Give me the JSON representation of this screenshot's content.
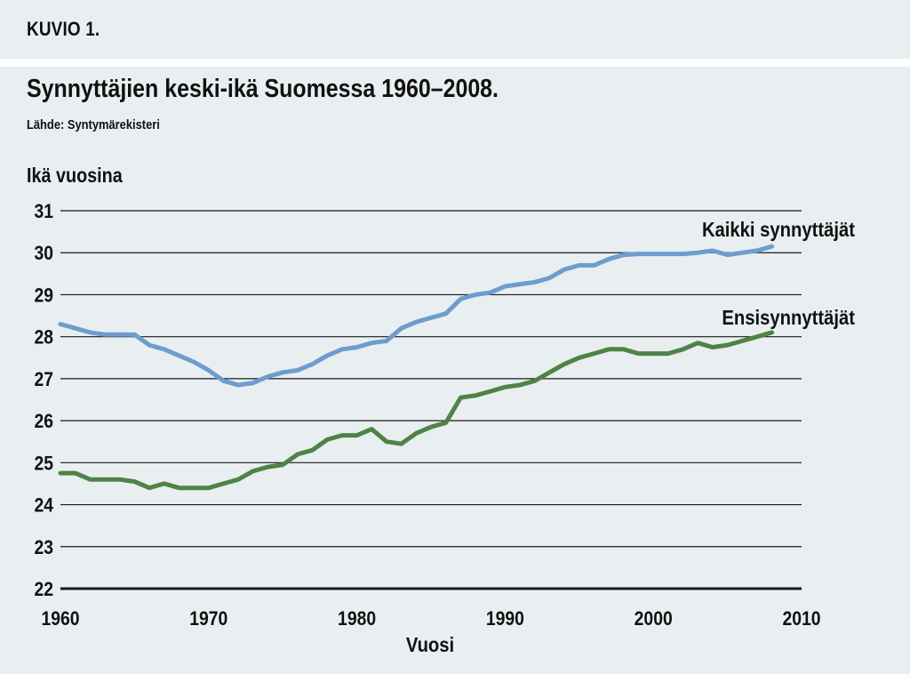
{
  "header": {
    "figure_label": "KUVIO 1.",
    "title": "Synnyttäjien keski-ikä Suomessa 1960–2008.",
    "source": "Lähde: Syntymärekisteri"
  },
  "colors": {
    "background": "#e9eef1",
    "all_mothers": "#6f9ccf",
    "first_time_mothers": "#4f8346",
    "grid": "#1a1a1a"
  },
  "chart_data": {
    "type": "line",
    "title": "Synnyttäjien keski-ikä Suomessa 1960–2008.",
    "xlabel": "Vuosi",
    "ylabel": "Ikä vuosina",
    "xlim": [
      1960,
      2010
    ],
    "ylim": [
      22,
      31
    ],
    "xticks": [
      1960,
      1970,
      1980,
      1990,
      2000,
      2010
    ],
    "yticks": [
      22,
      23,
      24,
      25,
      26,
      27,
      28,
      29,
      30,
      31
    ],
    "grid": true,
    "legend": "inline labels at right end of lines",
    "series": [
      {
        "name": "Kaikki synnyttäjät",
        "color": "#6f9ccf",
        "x": [
          1960,
          1961,
          1962,
          1963,
          1964,
          1965,
          1966,
          1967,
          1968,
          1969,
          1970,
          1971,
          1972,
          1973,
          1974,
          1975,
          1976,
          1977,
          1978,
          1979,
          1980,
          1981,
          1982,
          1983,
          1984,
          1985,
          1986,
          1987,
          1988,
          1989,
          1990,
          1991,
          1992,
          1993,
          1994,
          1995,
          1996,
          1997,
          1998,
          1999,
          2000,
          2001,
          2002,
          2003,
          2004,
          2005,
          2006,
          2007,
          2008
        ],
        "values": [
          28.3,
          28.2,
          28.1,
          28.05,
          28.05,
          28.05,
          27.8,
          27.7,
          27.55,
          27.4,
          27.2,
          26.95,
          26.85,
          26.9,
          27.05,
          27.15,
          27.2,
          27.35,
          27.55,
          27.7,
          27.75,
          27.85,
          27.9,
          28.2,
          28.35,
          28.45,
          28.55,
          28.9,
          29.0,
          29.05,
          29.2,
          29.25,
          29.3,
          29.4,
          29.6,
          29.7,
          29.7,
          29.85,
          29.95,
          29.97,
          29.97,
          29.97,
          29.97,
          30.0,
          30.05,
          29.95,
          30.0,
          30.05,
          30.15
        ]
      },
      {
        "name": "Ensisynnyttäjät",
        "color": "#4f8346",
        "x": [
          1960,
          1961,
          1962,
          1963,
          1964,
          1965,
          1966,
          1967,
          1968,
          1969,
          1970,
          1971,
          1972,
          1973,
          1974,
          1975,
          1976,
          1977,
          1978,
          1979,
          1980,
          1981,
          1982,
          1983,
          1984,
          1985,
          1986,
          1987,
          1988,
          1989,
          1990,
          1991,
          1992,
          1993,
          1994,
          1995,
          1996,
          1997,
          1998,
          1999,
          2000,
          2001,
          2002,
          2003,
          2004,
          2005,
          2006,
          2007,
          2008
        ],
        "values": [
          24.75,
          24.75,
          24.6,
          24.6,
          24.6,
          24.55,
          24.4,
          24.5,
          24.4,
          24.4,
          24.4,
          24.5,
          24.6,
          24.8,
          24.9,
          24.95,
          25.2,
          25.3,
          25.55,
          25.65,
          25.65,
          25.8,
          25.5,
          25.45,
          25.7,
          25.85,
          25.95,
          26.55,
          26.6,
          26.7,
          26.8,
          26.85,
          26.95,
          27.15,
          27.35,
          27.5,
          27.6,
          27.7,
          27.7,
          27.6,
          27.6,
          27.6,
          27.7,
          27.85,
          27.75,
          27.8,
          27.9,
          28.0,
          28.1
        ]
      }
    ]
  }
}
